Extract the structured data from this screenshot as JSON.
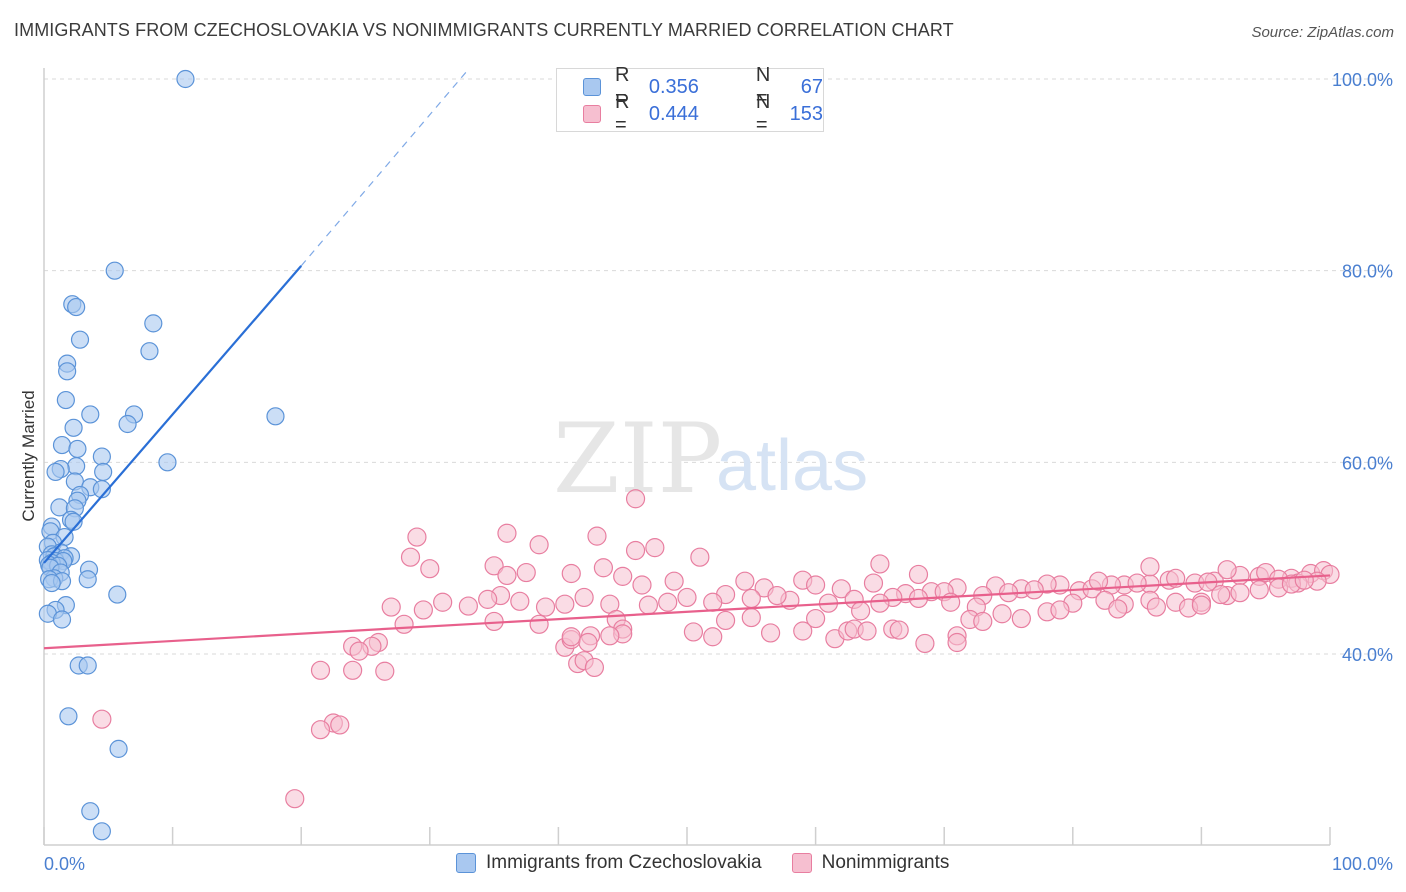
{
  "title": "IMMIGRANTS FROM CZECHOSLOVAKIA VS NONIMMIGRANTS CURRENTLY MARRIED CORRELATION CHART",
  "source": "Source: ZipAtlas.com",
  "watermark": {
    "zip": "ZIP",
    "atlas": "atlas"
  },
  "legend": {
    "series1": {
      "r_label": "R =",
      "r_value": "0.356",
      "n_label": "N =",
      "n_value": "67"
    },
    "series2": {
      "r_label": "R =",
      "r_value": "0.444",
      "n_label": "N =",
      "n_value": "153"
    }
  },
  "bottom_legend": {
    "series1": "Immigrants from Czechoslovakia",
    "series2": "Nonimmigrants"
  },
  "colors": {
    "blue_fill": "#a9c8f0",
    "blue_stroke": "#5b93d8",
    "blue_line": "#2a6fd6",
    "pink_fill": "#f6bfd0",
    "pink_stroke": "#e87ea0",
    "pink_line": "#e8608c",
    "tick_label": "#4a7fd0",
    "grid": "#d9d9d9"
  },
  "chart_data": {
    "type": "scatter",
    "title": "IMMIGRANTS FROM CZECHOSLOVAKIA VS NONIMMIGRANTS CURRENTLY MARRIED CORRELATION CHART",
    "xlabel": "",
    "ylabel": "Currently Married",
    "x_ticks": [
      "0.0%",
      "100.0%"
    ],
    "y_ticks": [
      "40.0%",
      "60.0%",
      "80.0%",
      "100.0%"
    ],
    "xlim": [
      0,
      100
    ],
    "ylim": [
      20,
      102
    ],
    "grid": true,
    "legend_position": "top-center",
    "series": [
      {
        "name": "Immigrants from Czechoslovakia",
        "trend": {
          "x0": 0,
          "y0": 49.5,
          "x1": 20,
          "y1": 80.5,
          "dashed_to_x": 33,
          "dashed_to_y": 101
        },
        "points": [
          [
            11,
            100
          ],
          [
            5.5,
            80
          ],
          [
            2.2,
            76.5
          ],
          [
            2.5,
            76.2
          ],
          [
            8.5,
            74.5
          ],
          [
            2.8,
            72.8
          ],
          [
            8.2,
            71.6
          ],
          [
            1.8,
            70.3
          ],
          [
            1.8,
            69.5
          ],
          [
            1.7,
            66.5
          ],
          [
            3.6,
            65
          ],
          [
            7,
            65
          ],
          [
            18,
            64.8
          ],
          [
            6.5,
            64
          ],
          [
            2.3,
            63.6
          ],
          [
            1.4,
            61.8
          ],
          [
            2.6,
            61.4
          ],
          [
            4.5,
            60.6
          ],
          [
            9.6,
            60
          ],
          [
            2.5,
            59.6
          ],
          [
            1.3,
            59.3
          ],
          [
            0.9,
            59
          ],
          [
            4.6,
            59
          ],
          [
            2.4,
            58
          ],
          [
            3.6,
            57.4
          ],
          [
            4.5,
            57.2
          ],
          [
            2.8,
            56.6
          ],
          [
            2.6,
            56
          ],
          [
            1.2,
            55.3
          ],
          [
            2.4,
            55.2
          ],
          [
            2.1,
            54
          ],
          [
            2.3,
            53.8
          ],
          [
            0.6,
            53.3
          ],
          [
            0.5,
            52.8
          ],
          [
            1.6,
            52.2
          ],
          [
            0.7,
            51.6
          ],
          [
            0.3,
            51.2
          ],
          [
            1.3,
            50.6
          ],
          [
            0.6,
            50.4
          ],
          [
            0.8,
            50.2
          ],
          [
            2.1,
            50.2
          ],
          [
            1.6,
            50
          ],
          [
            0.3,
            49.8
          ],
          [
            0.9,
            49.7
          ],
          [
            1.5,
            49.7
          ],
          [
            0.6,
            49.5
          ],
          [
            0.4,
            49.3
          ],
          [
            1.1,
            49.2
          ],
          [
            0.5,
            49
          ],
          [
            3.5,
            48.8
          ],
          [
            1.3,
            48.5
          ],
          [
            0.8,
            47.9
          ],
          [
            0.4,
            47.8
          ],
          [
            3.4,
            47.8
          ],
          [
            1.4,
            47.6
          ],
          [
            0.6,
            47.4
          ],
          [
            5.7,
            46.2
          ],
          [
            1.7,
            45.1
          ],
          [
            0.9,
            44.6
          ],
          [
            0.3,
            44.2
          ],
          [
            1.4,
            43.6
          ],
          [
            2.7,
            38.8
          ],
          [
            3.4,
            38.8
          ],
          [
            1.9,
            33.5
          ],
          [
            5.8,
            30.1
          ],
          [
            3.6,
            23.6
          ],
          [
            4.5,
            21.5
          ]
        ]
      },
      {
        "name": "Nonimmigrants",
        "trend": {
          "x0": 0,
          "y0": 40.6,
          "x1": 100,
          "y1": 48.2
        },
        "points": [
          [
            46,
            56.2
          ],
          [
            29,
            52.2
          ],
          [
            43,
            52.3
          ],
          [
            38.5,
            51.4
          ],
          [
            47.5,
            51.1
          ],
          [
            46,
            50.8
          ],
          [
            28.5,
            50.1
          ],
          [
            51,
            50.1
          ],
          [
            35,
            49.2
          ],
          [
            30,
            48.9
          ],
          [
            43.5,
            49
          ],
          [
            65,
            49.4
          ],
          [
            37.5,
            48.5
          ],
          [
            36,
            48.2
          ],
          [
            41,
            48.4
          ],
          [
            45,
            48.1
          ],
          [
            68,
            48.3
          ],
          [
            59,
            47.7
          ],
          [
            54.5,
            47.6
          ],
          [
            49,
            47.6
          ],
          [
            46.5,
            47.2
          ],
          [
            64.5,
            47.4
          ],
          [
            60,
            47.2
          ],
          [
            56,
            46.9
          ],
          [
            62,
            46.8
          ],
          [
            71,
            46.9
          ],
          [
            69,
            46.5
          ],
          [
            80.5,
            46.6
          ],
          [
            81.5,
            46.8
          ],
          [
            74,
            47.1
          ],
          [
            79,
            47.2
          ],
          [
            76,
            46.8
          ],
          [
            84,
            47.2
          ],
          [
            86,
            47.3
          ],
          [
            87.5,
            47.7
          ],
          [
            88,
            47.9
          ],
          [
            91,
            47.6
          ],
          [
            89.5,
            47.4
          ],
          [
            94.5,
            48.1
          ],
          [
            95,
            48.5
          ],
          [
            93,
            48.2
          ],
          [
            97,
            47.9
          ],
          [
            98.5,
            48.4
          ],
          [
            92,
            48.8
          ],
          [
            99.5,
            48.7
          ],
          [
            100,
            48.3
          ],
          [
            97.5,
            47.4
          ],
          [
            99,
            47.6
          ],
          [
            96,
            47.8
          ],
          [
            90.5,
            47.5
          ],
          [
            85,
            47.4
          ],
          [
            83,
            47.2
          ],
          [
            82,
            47.6
          ],
          [
            78,
            47.3
          ],
          [
            77,
            46.7
          ],
          [
            75,
            46.4
          ],
          [
            73,
            46.1
          ],
          [
            70,
            46.5
          ],
          [
            67,
            46.3
          ],
          [
            66,
            45.9
          ],
          [
            63,
            45.7
          ],
          [
            61,
            45.3
          ],
          [
            58,
            45.6
          ],
          [
            57,
            46.1
          ],
          [
            55,
            45.8
          ],
          [
            53,
            46.2
          ],
          [
            52,
            45.4
          ],
          [
            50,
            45.9
          ],
          [
            48.5,
            45.4
          ],
          [
            47,
            45.1
          ],
          [
            44,
            45.2
          ],
          [
            42,
            45.9
          ],
          [
            40.5,
            45.2
          ],
          [
            39,
            44.9
          ],
          [
            37,
            45.5
          ],
          [
            35.5,
            46.1
          ],
          [
            34.5,
            45.7
          ],
          [
            33,
            45
          ],
          [
            31,
            45.4
          ],
          [
            29.5,
            44.6
          ],
          [
            27,
            44.9
          ],
          [
            28,
            43.1
          ],
          [
            35,
            43.4
          ],
          [
            38.5,
            43.1
          ],
          [
            44.5,
            43.6
          ],
          [
            45,
            42.6
          ],
          [
            53,
            43.5
          ],
          [
            55,
            43.8
          ],
          [
            60,
            43.7
          ],
          [
            63.5,
            44.5
          ],
          [
            65,
            45.3
          ],
          [
            68,
            45.8
          ],
          [
            70.5,
            45.4
          ],
          [
            72.5,
            44.9
          ],
          [
            74.5,
            44.2
          ],
          [
            76,
            43.7
          ],
          [
            78,
            44.4
          ],
          [
            80,
            45.3
          ],
          [
            82.5,
            45.6
          ],
          [
            84,
            45.2
          ],
          [
            86,
            45.6
          ],
          [
            88,
            45.4
          ],
          [
            90,
            45.4
          ],
          [
            92,
            46.1
          ],
          [
            93,
            46.4
          ],
          [
            94.5,
            46.7
          ],
          [
            96,
            46.9
          ],
          [
            97,
            47.3
          ],
          [
            98,
            47.7
          ],
          [
            52,
            41.8
          ],
          [
            50.5,
            42.3
          ],
          [
            56.5,
            42.2
          ],
          [
            59,
            42.4
          ],
          [
            61.5,
            41.6
          ],
          [
            62.5,
            42.4
          ],
          [
            66,
            42.6
          ],
          [
            66.5,
            42.5
          ],
          [
            68.5,
            41.1
          ],
          [
            71,
            41.9
          ],
          [
            72,
            43.6
          ],
          [
            73,
            43.4
          ],
          [
            79,
            44.6
          ],
          [
            83.5,
            44.7
          ],
          [
            86.5,
            44.9
          ],
          [
            89,
            44.8
          ],
          [
            90,
            45.1
          ],
          [
            91.5,
            46.2
          ],
          [
            26,
            41.2
          ],
          [
            25.5,
            40.8
          ],
          [
            24,
            40.8
          ],
          [
            24.5,
            40.3
          ],
          [
            40.5,
            40.7
          ],
          [
            41,
            41.5
          ],
          [
            42.5,
            41.9
          ],
          [
            45,
            42.1
          ],
          [
            41,
            41.8
          ],
          [
            42.3,
            41.2
          ],
          [
            21.5,
            38.3
          ],
          [
            24,
            38.3
          ],
          [
            26.5,
            38.2
          ],
          [
            41.5,
            39
          ],
          [
            42,
            39.3
          ],
          [
            42.8,
            38.6
          ],
          [
            44,
            41.9
          ],
          [
            63,
            42.6
          ],
          [
            64,
            42.4
          ],
          [
            71,
            41.2
          ],
          [
            22.5,
            32.8
          ],
          [
            23,
            32.6
          ],
          [
            21.5,
            32.1
          ],
          [
            4.5,
            33.2
          ],
          [
            19.5,
            24.9
          ],
          [
            36,
            52.6
          ],
          [
            86,
            49.1
          ]
        ]
      }
    ]
  }
}
